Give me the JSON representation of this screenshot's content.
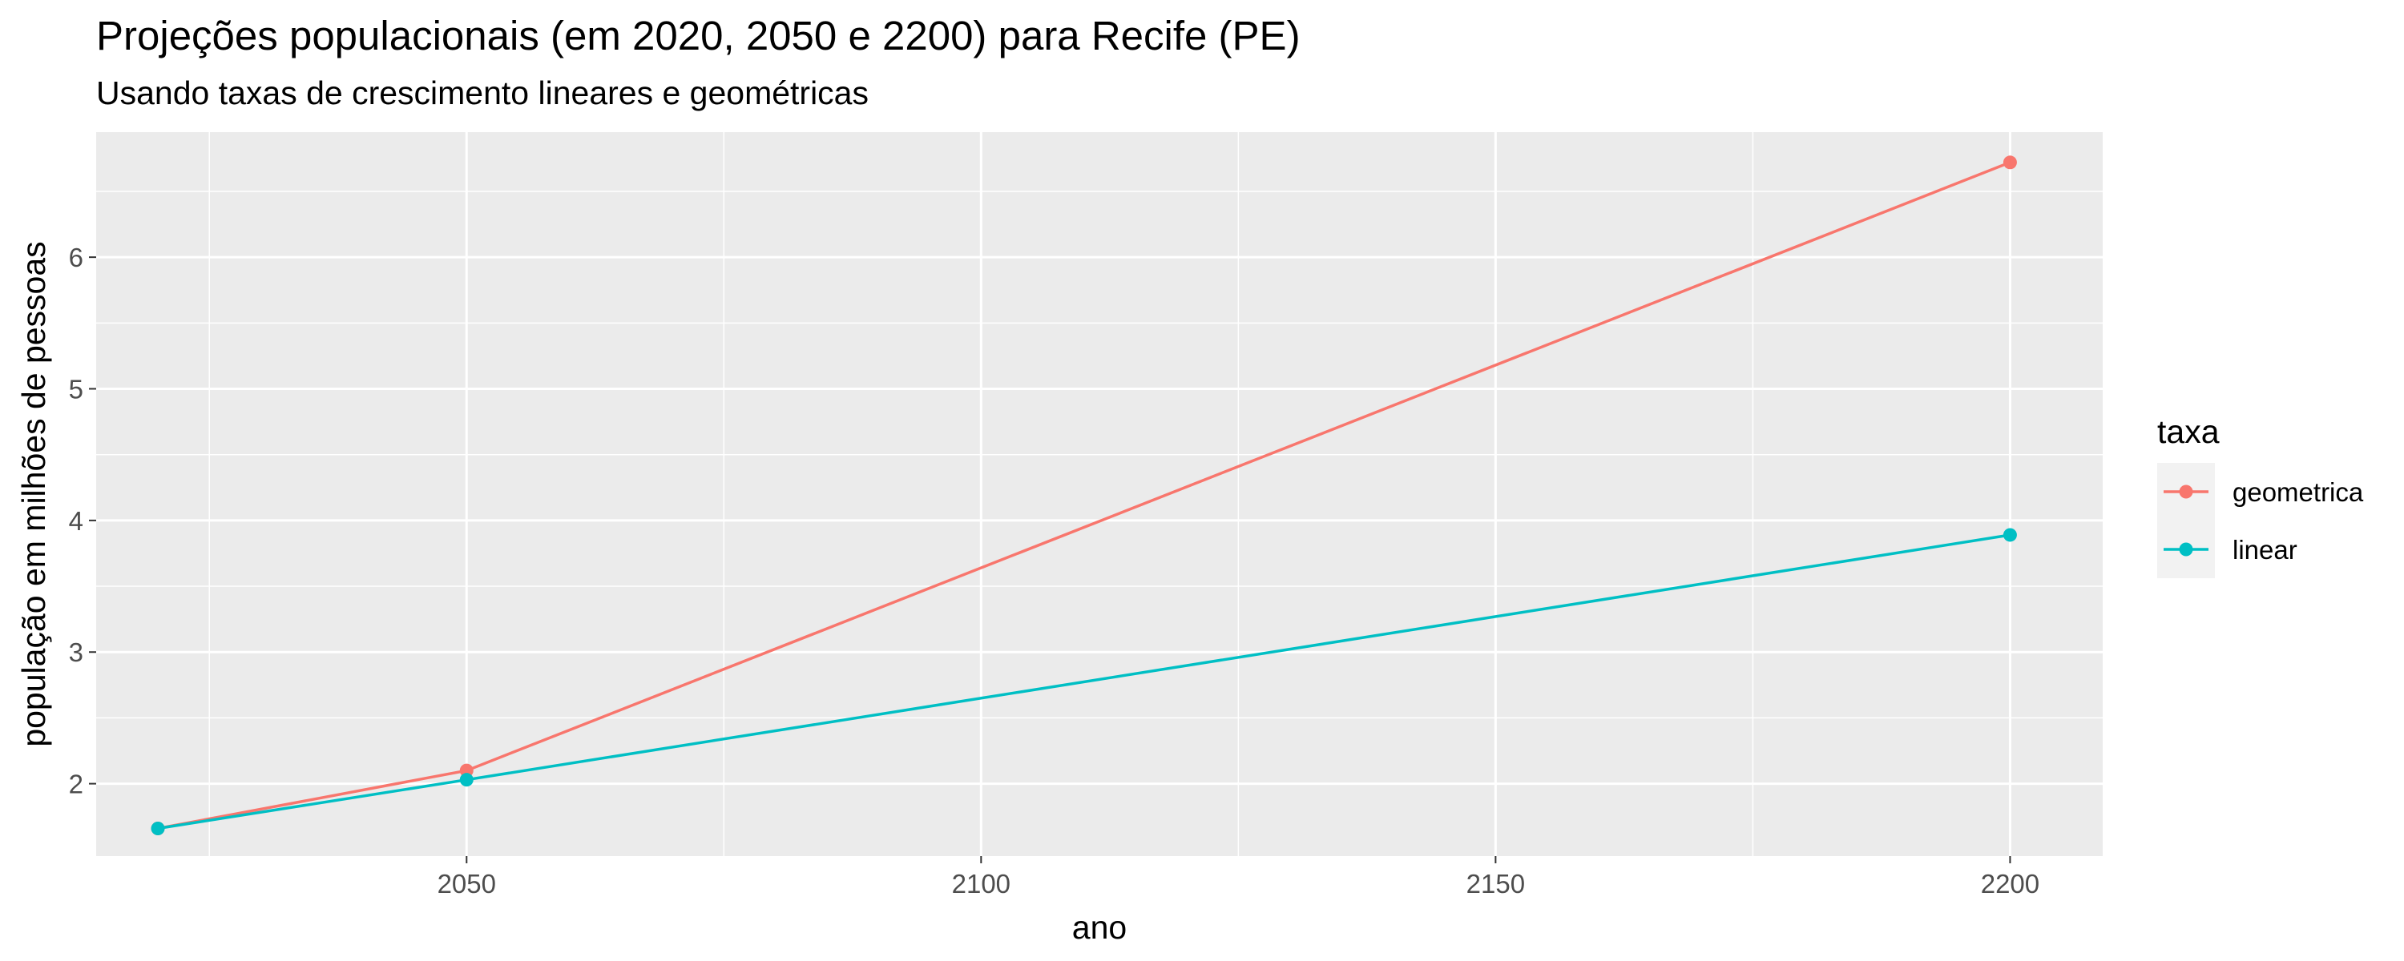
{
  "chart_data": {
    "type": "line",
    "title": "Projeções populacionais (em 2020, 2050 e 2200) para Recife (PE)",
    "subtitle": "Usando taxas de crescimento lineares e geométricas",
    "xlabel": "ano",
    "ylabel": "população em milhões de pessoas",
    "x": [
      2020,
      2050,
      2200
    ],
    "xlim": [
      2014,
      2209
    ],
    "ylim": [
      1.45,
      6.95
    ],
    "xticks": [
      2050,
      2100,
      2150,
      2200
    ],
    "xtick_labels": [
      "2050",
      "2100",
      "2150",
      "2200"
    ],
    "yticks": [
      2,
      3,
      4,
      5,
      6
    ],
    "ytick_labels": [
      "2",
      "3",
      "4",
      "5",
      "6"
    ],
    "grid": true,
    "legend": {
      "title": "taxa",
      "position": "right"
    },
    "series": [
      {
        "name": "geometrica",
        "color": "#F8766D",
        "values": [
          1.66,
          2.1,
          6.72
        ]
      },
      {
        "name": "linear",
        "color": "#00BFC4",
        "values": [
          1.66,
          2.03,
          3.89
        ]
      }
    ]
  }
}
